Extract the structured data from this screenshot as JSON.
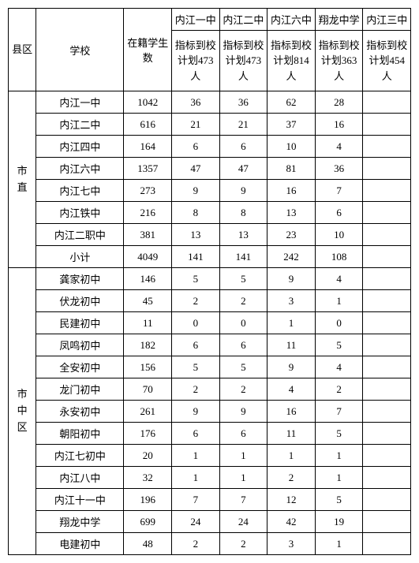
{
  "header": {
    "district": "县区",
    "school": "学校",
    "enrolled": "在籍学生数",
    "schools": [
      {
        "name": "内江一中",
        "quota": "指标到校计划473人"
      },
      {
        "name": "内江二中",
        "quota": "指标到校计划473人"
      },
      {
        "name": "内江六中",
        "quota": "指标到校计划814人"
      },
      {
        "name": "翔龙中学",
        "quota": "指标到校计划363人"
      },
      {
        "name": "内江三中",
        "quota": "指标到校计划454人"
      }
    ]
  },
  "groups": [
    {
      "district": "市直",
      "rows": [
        {
          "school": "内江一中",
          "count": "1042",
          "v": [
            "36",
            "36",
            "62",
            "28",
            ""
          ]
        },
        {
          "school": "内江二中",
          "count": "616",
          "v": [
            "21",
            "21",
            "37",
            "16",
            ""
          ]
        },
        {
          "school": "内江四中",
          "count": "164",
          "v": [
            "6",
            "6",
            "10",
            "4",
            ""
          ]
        },
        {
          "school": "内江六中",
          "count": "1357",
          "v": [
            "47",
            "47",
            "81",
            "36",
            ""
          ]
        },
        {
          "school": "内江七中",
          "count": "273",
          "v": [
            "9",
            "9",
            "16",
            "7",
            ""
          ]
        },
        {
          "school": "内江铁中",
          "count": "216",
          "v": [
            "8",
            "8",
            "13",
            "6",
            ""
          ]
        },
        {
          "school": "内江二职中",
          "count": "381",
          "v": [
            "13",
            "13",
            "23",
            "10",
            ""
          ]
        },
        {
          "school": "小计",
          "count": "4049",
          "v": [
            "141",
            "141",
            "242",
            "108",
            ""
          ]
        }
      ]
    },
    {
      "district": "市中区",
      "rows": [
        {
          "school": "龚家初中",
          "count": "146",
          "v": [
            "5",
            "5",
            "9",
            "4",
            ""
          ]
        },
        {
          "school": "伏龙初中",
          "count": "45",
          "v": [
            "2",
            "2",
            "3",
            "1",
            ""
          ]
        },
        {
          "school": "民建初中",
          "count": "11",
          "v": [
            "0",
            "0",
            "1",
            "0",
            ""
          ]
        },
        {
          "school": "凤鸣初中",
          "count": "182",
          "v": [
            "6",
            "6",
            "11",
            "5",
            ""
          ]
        },
        {
          "school": "全安初中",
          "count": "156",
          "v": [
            "5",
            "5",
            "9",
            "4",
            ""
          ]
        },
        {
          "school": "龙门初中",
          "count": "70",
          "v": [
            "2",
            "2",
            "4",
            "2",
            ""
          ]
        },
        {
          "school": "永安初中",
          "count": "261",
          "v": [
            "9",
            "9",
            "16",
            "7",
            ""
          ]
        },
        {
          "school": "朝阳初中",
          "count": "176",
          "v": [
            "6",
            "6",
            "11",
            "5",
            ""
          ]
        },
        {
          "school": "内江七初中",
          "count": "20",
          "v": [
            "1",
            "1",
            "1",
            "1",
            ""
          ]
        },
        {
          "school": "内江八中",
          "count": "32",
          "v": [
            "1",
            "1",
            "2",
            "1",
            ""
          ]
        },
        {
          "school": "内江十一中",
          "count": "196",
          "v": [
            "7",
            "7",
            "12",
            "5",
            ""
          ]
        },
        {
          "school": "翔龙中学",
          "count": "699",
          "v": [
            "24",
            "24",
            "42",
            "19",
            ""
          ]
        },
        {
          "school": "电建初中",
          "count": "48",
          "v": [
            "2",
            "2",
            "3",
            "1",
            ""
          ]
        }
      ]
    }
  ]
}
